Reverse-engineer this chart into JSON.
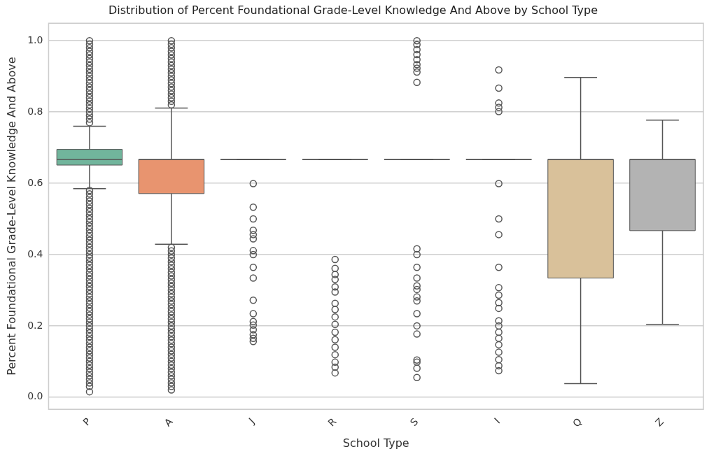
{
  "chart_data": {
    "type": "box",
    "title": "Distribution of Percent Foundational Grade-Level Knowledge And Above by School Type",
    "xlabel": "School Type",
    "ylabel": "Percent Foundational Grade-Level Knowledge And Above",
    "categories": [
      "P",
      "A",
      "J",
      "R",
      "S",
      "I",
      "Q",
      "Z"
    ],
    "colors": [
      "#71b59c",
      "#e8946f",
      "#555555",
      "#555555",
      "#555555",
      "#555555",
      "#d9c19a",
      "#b3b3b3"
    ],
    "boxes": [
      {
        "low": 0.585,
        "q1": 0.651,
        "median": 0.667,
        "q3": 0.695,
        "high": 0.76,
        "outliers": [
          0.015,
          0.03,
          0.04,
          0.05,
          0.06,
          0.07,
          0.08,
          0.09,
          0.1,
          0.11,
          0.12,
          0.13,
          0.14,
          0.15,
          0.16,
          0.17,
          0.18,
          0.19,
          0.2,
          0.21,
          0.22,
          0.23,
          0.24,
          0.25,
          0.26,
          0.27,
          0.28,
          0.29,
          0.3,
          0.31,
          0.32,
          0.33,
          0.34,
          0.35,
          0.36,
          0.37,
          0.38,
          0.39,
          0.4,
          0.41,
          0.42,
          0.43,
          0.44,
          0.45,
          0.46,
          0.47,
          0.48,
          0.49,
          0.5,
          0.51,
          0.52,
          0.53,
          0.54,
          0.55,
          0.56,
          0.57,
          0.58,
          0.77,
          0.78,
          0.79,
          0.8,
          0.81,
          0.82,
          0.83,
          0.84,
          0.85,
          0.86,
          0.87,
          0.88,
          0.89,
          0.9,
          0.91,
          0.92,
          0.93,
          0.94,
          0.95,
          0.96,
          0.97,
          0.98,
          0.99,
          1.0
        ]
      },
      {
        "low": 0.429,
        "q1": 0.571,
        "median": 0.667,
        "q3": 0.667,
        "high": 0.811,
        "outliers": [
          0.02,
          0.03,
          0.04,
          0.05,
          0.06,
          0.07,
          0.08,
          0.09,
          0.1,
          0.11,
          0.12,
          0.13,
          0.14,
          0.15,
          0.16,
          0.17,
          0.18,
          0.19,
          0.2,
          0.21,
          0.22,
          0.23,
          0.24,
          0.25,
          0.26,
          0.27,
          0.28,
          0.29,
          0.3,
          0.31,
          0.32,
          0.33,
          0.34,
          0.35,
          0.36,
          0.37,
          0.38,
          0.39,
          0.4,
          0.41,
          0.42,
          0.82,
          0.83,
          0.84,
          0.85,
          0.86,
          0.87,
          0.88,
          0.89,
          0.9,
          0.91,
          0.92,
          0.93,
          0.94,
          0.95,
          0.96,
          0.97,
          0.98,
          0.99,
          1.0
        ]
      },
      {
        "low": 0.667,
        "q1": 0.667,
        "median": 0.667,
        "q3": 0.667,
        "high": 0.667,
        "outliers": [
          0.599,
          0.533,
          0.5,
          0.468,
          0.456,
          0.444,
          0.411,
          0.4,
          0.364,
          0.334,
          0.272,
          0.234,
          0.212,
          0.202,
          0.189,
          0.175,
          0.165,
          0.156
        ]
      },
      {
        "low": 0.667,
        "q1": 0.667,
        "median": 0.667,
        "q3": 0.667,
        "high": 0.667,
        "outliers": [
          0.386,
          0.361,
          0.344,
          0.33,
          0.309,
          0.295,
          0.263,
          0.246,
          0.225,
          0.204,
          0.182,
          0.161,
          0.14,
          0.119,
          0.098,
          0.084,
          0.068
        ]
      },
      {
        "low": 0.667,
        "q1": 0.667,
        "median": 0.667,
        "q3": 0.667,
        "high": 0.667,
        "outliers": [
          1.0,
          0.989,
          0.975,
          0.961,
          0.947,
          0.933,
          0.923,
          0.912,
          0.883,
          0.416,
          0.4,
          0.364,
          0.334,
          0.312,
          0.302,
          0.281,
          0.27,
          0.234,
          0.2,
          0.177,
          0.104,
          0.098,
          0.081,
          0.055
        ]
      },
      {
        "low": 0.667,
        "q1": 0.667,
        "median": 0.667,
        "q3": 0.667,
        "high": 0.667,
        "outliers": [
          0.918,
          0.867,
          0.825,
          0.813,
          0.801,
          0.599,
          0.5,
          0.456,
          0.364,
          0.307,
          0.286,
          0.265,
          0.249,
          0.214,
          0.2,
          0.182,
          0.165,
          0.147,
          0.126,
          0.105,
          0.088,
          0.074
        ]
      },
      {
        "low": 0.038,
        "q1": 0.334,
        "median": 0.667,
        "q3": 0.667,
        "high": 0.897
      },
      {
        "low": 0.204,
        "q1": 0.467,
        "median": 0.667,
        "q3": 0.667,
        "high": 0.777
      }
    ],
    "ylim": [
      -0.034,
      1.049
    ],
    "yticks": [
      {
        "value": 0,
        "label": "0.0"
      },
      0.2,
      0.4,
      0.6,
      0.8,
      {
        "value": 1,
        "label": "1.0"
      }
    ],
    "grid": "y",
    "legend": false
  }
}
